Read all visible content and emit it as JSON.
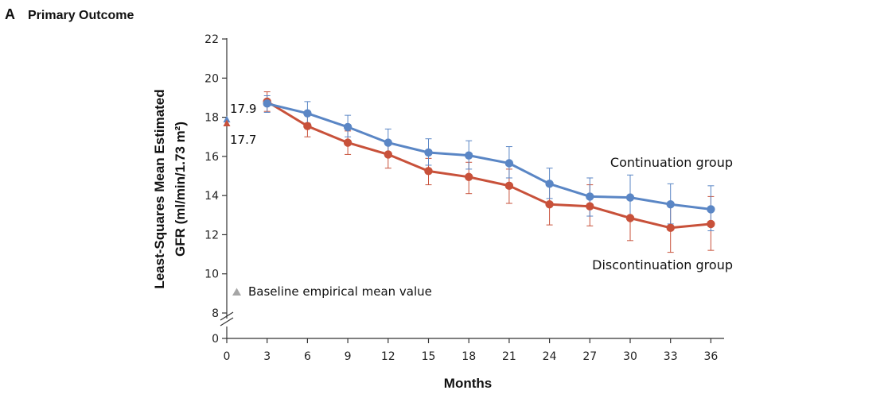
{
  "panel": {
    "letter": "A",
    "title": "Primary Outcome"
  },
  "colors": {
    "continuation": "#5a86c5",
    "discontinuation": "#c8513a",
    "baseline_marker": "#a6a6a6",
    "axis": "#333333"
  },
  "chart_data": {
    "type": "line",
    "xlabel": "Months",
    "ylabel_line1": "Least-Squares Mean Estimated",
    "ylabel_line2": "GFR (ml/min/1.73 m²)",
    "x_ticks": [
      0,
      3,
      6,
      9,
      12,
      15,
      18,
      21,
      24,
      27,
      30,
      33,
      36
    ],
    "y_ticks": [
      0,
      8,
      10,
      12,
      14,
      16,
      18,
      20,
      22
    ],
    "ylim": [
      0,
      22
    ],
    "y_axis_break": true,
    "baseline": {
      "legend_label": "Baseline empirical mean value",
      "marker": "triangle",
      "values": [
        {
          "series": "Continuation group",
          "x": 0,
          "y": 17.9,
          "label": "17.9"
        },
        {
          "series": "Discontinuation group",
          "x": 0,
          "y": 17.7,
          "label": "17.7"
        }
      ]
    },
    "series": [
      {
        "name": "Continuation group",
        "color": "#5a86c5",
        "x": [
          3,
          6,
          9,
          12,
          15,
          18,
          21,
          24,
          27,
          30,
          33,
          36
        ],
        "y": [
          18.7,
          18.2,
          17.5,
          16.7,
          16.2,
          16.05,
          15.65,
          14.6,
          13.95,
          13.9,
          13.55,
          13.3
        ],
        "err_upper": [
          19.1,
          18.8,
          18.1,
          17.4,
          16.9,
          16.8,
          16.5,
          15.4,
          14.9,
          15.05,
          14.6,
          14.5
        ],
        "err_lower": [
          18.25,
          17.7,
          17.0,
          16.0,
          15.55,
          15.35,
          14.9,
          13.85,
          12.95,
          12.75,
          12.55,
          12.2
        ]
      },
      {
        "name": "Discontinuation group",
        "color": "#c8513a",
        "x": [
          3,
          6,
          9,
          12,
          15,
          18,
          21,
          24,
          27,
          30,
          33,
          36
        ],
        "y": [
          18.8,
          17.55,
          16.7,
          16.1,
          15.25,
          14.95,
          14.5,
          13.55,
          13.45,
          12.85,
          12.35,
          12.55
        ],
        "err_upper": [
          19.3,
          18.1,
          17.3,
          16.75,
          15.9,
          15.7,
          15.35,
          14.55,
          14.55,
          13.9,
          13.6,
          13.95
        ],
        "err_lower": [
          18.3,
          17.0,
          16.1,
          15.4,
          14.55,
          14.1,
          13.6,
          12.5,
          12.45,
          11.7,
          11.1,
          11.2
        ]
      }
    ]
  }
}
